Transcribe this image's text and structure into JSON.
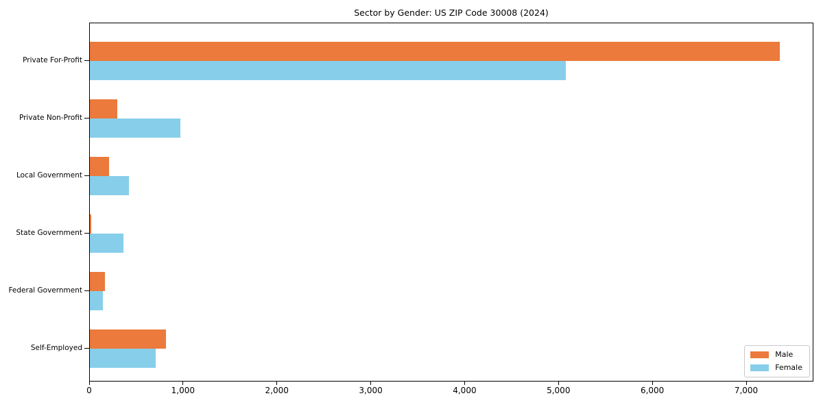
{
  "chart_data": {
    "type": "bar",
    "orientation": "horizontal",
    "title": "Sector by Gender: US ZIP Code 30008 (2024)",
    "xlabel": "",
    "ylabel": "",
    "categories": [
      "Private For-Profit",
      "Private Non-Profit",
      "Local Government",
      "State Government",
      "Federal Government",
      "Self-Employed"
    ],
    "series": [
      {
        "name": "Male",
        "color": "#EB7A3C",
        "values": [
          7350,
          292,
          207,
          12,
          163,
          809
        ]
      },
      {
        "name": "Female",
        "color": "#87CEEB",
        "values": [
          5071,
          962,
          414,
          358,
          141,
          701
        ]
      }
    ],
    "xlim": [
      0,
      7716
    ],
    "x_ticks": [
      0,
      1000,
      2000,
      3000,
      4000,
      5000,
      6000,
      7000
    ],
    "x_tick_labels": [
      "0",
      "1,000",
      "2,000",
      "3,000",
      "4,000",
      "5,000",
      "6,000",
      "7,000"
    ],
    "grid": false,
    "legend_position": "lower right",
    "colors": {
      "axis": "#000000",
      "legend_border": "#c9c9c9",
      "background": "#ffffff"
    }
  }
}
